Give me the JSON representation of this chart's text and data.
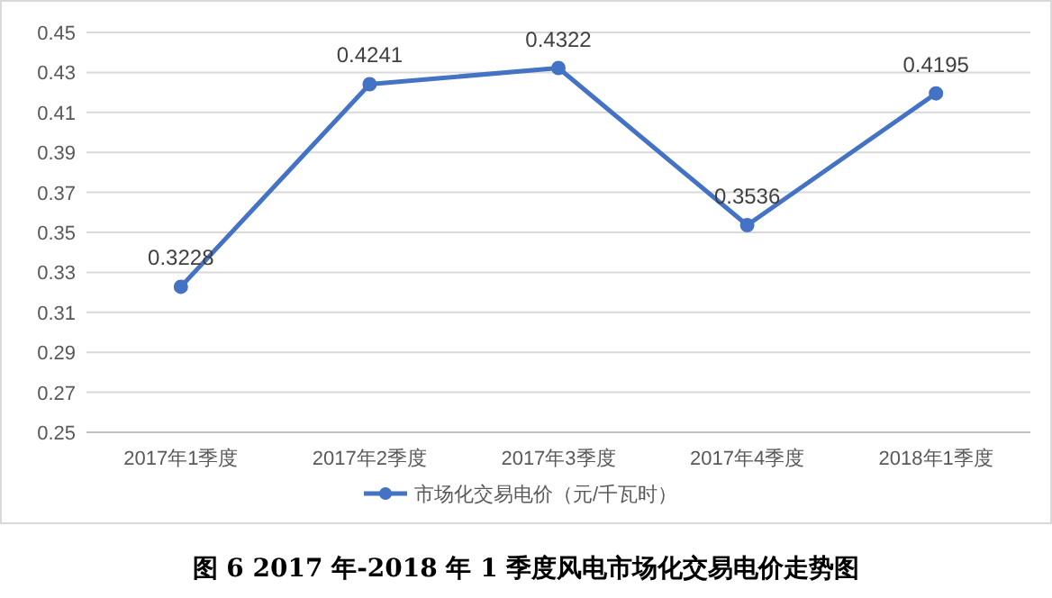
{
  "chart_data": {
    "type": "line",
    "title": "图 6 2017 年-2018 年 1 季度风电市场化交易电价走势图",
    "categories": [
      "2017年1季度",
      "2017年2季度",
      "2017年3季度",
      "2017年4季度",
      "2018年1季度"
    ],
    "series": [
      {
        "name": "市场化交易电价（元/千瓦时）",
        "color": "#4472c4",
        "values": [
          0.3228,
          0.4241,
          0.4322,
          0.3536,
          0.4195
        ]
      }
    ],
    "ylim": [
      0.25,
      0.45
    ],
    "yticks": [
      0.25,
      0.27,
      0.29,
      0.31,
      0.33,
      0.35,
      0.37,
      0.39,
      0.41,
      0.43,
      0.45
    ],
    "grid": "y",
    "legend": "bottom",
    "marker": "circle",
    "line_style": "solid",
    "data_labels": true
  }
}
